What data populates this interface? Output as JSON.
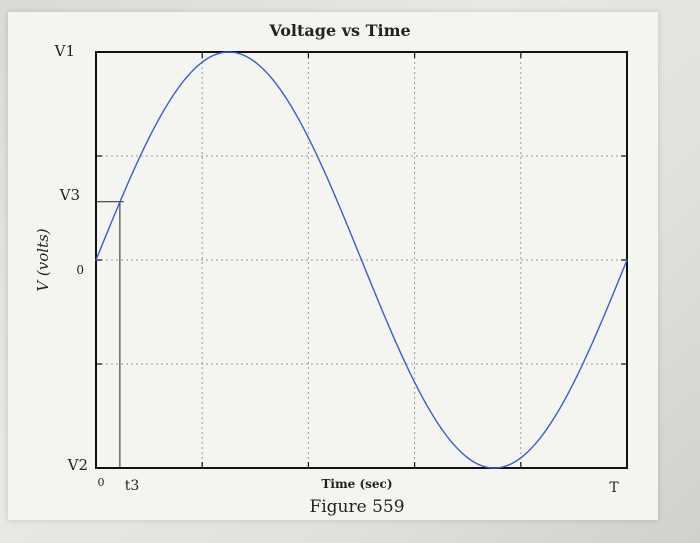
{
  "chart_data": {
    "type": "line",
    "title": "Voltage vs Time",
    "xlabel": "Time (sec)",
    "ylabel": "V (volts)",
    "caption": "Figure 559",
    "y_tick_labels": [
      "V1",
      "V3",
      "0",
      "V2"
    ],
    "x_tick_labels": [
      "0",
      "t3",
      "T"
    ],
    "grid": true,
    "series": [
      {
        "color": "#3b5fc7",
        "x": [
          0,
          0.05,
          0.1,
          0.15,
          0.2,
          0.25,
          0.3,
          0.35,
          0.4,
          0.45,
          0.5,
          0.55,
          0.6,
          0.65,
          0.7,
          0.75,
          0.8,
          0.85,
          0.9,
          0.95,
          1.0
        ],
        "values": [
          0,
          0.309,
          0.588,
          0.809,
          0.951,
          1,
          0.951,
          0.809,
          0.588,
          0.309,
          0,
          -0.309,
          -0.588,
          -0.809,
          -0.951,
          -1,
          -0.951,
          -0.809,
          -0.588,
          -0.309,
          0
        ]
      }
    ],
    "annotation": {
      "label": "t3",
      "x": 0.045,
      "y": 0.28,
      "ylabel": "V3"
    }
  }
}
